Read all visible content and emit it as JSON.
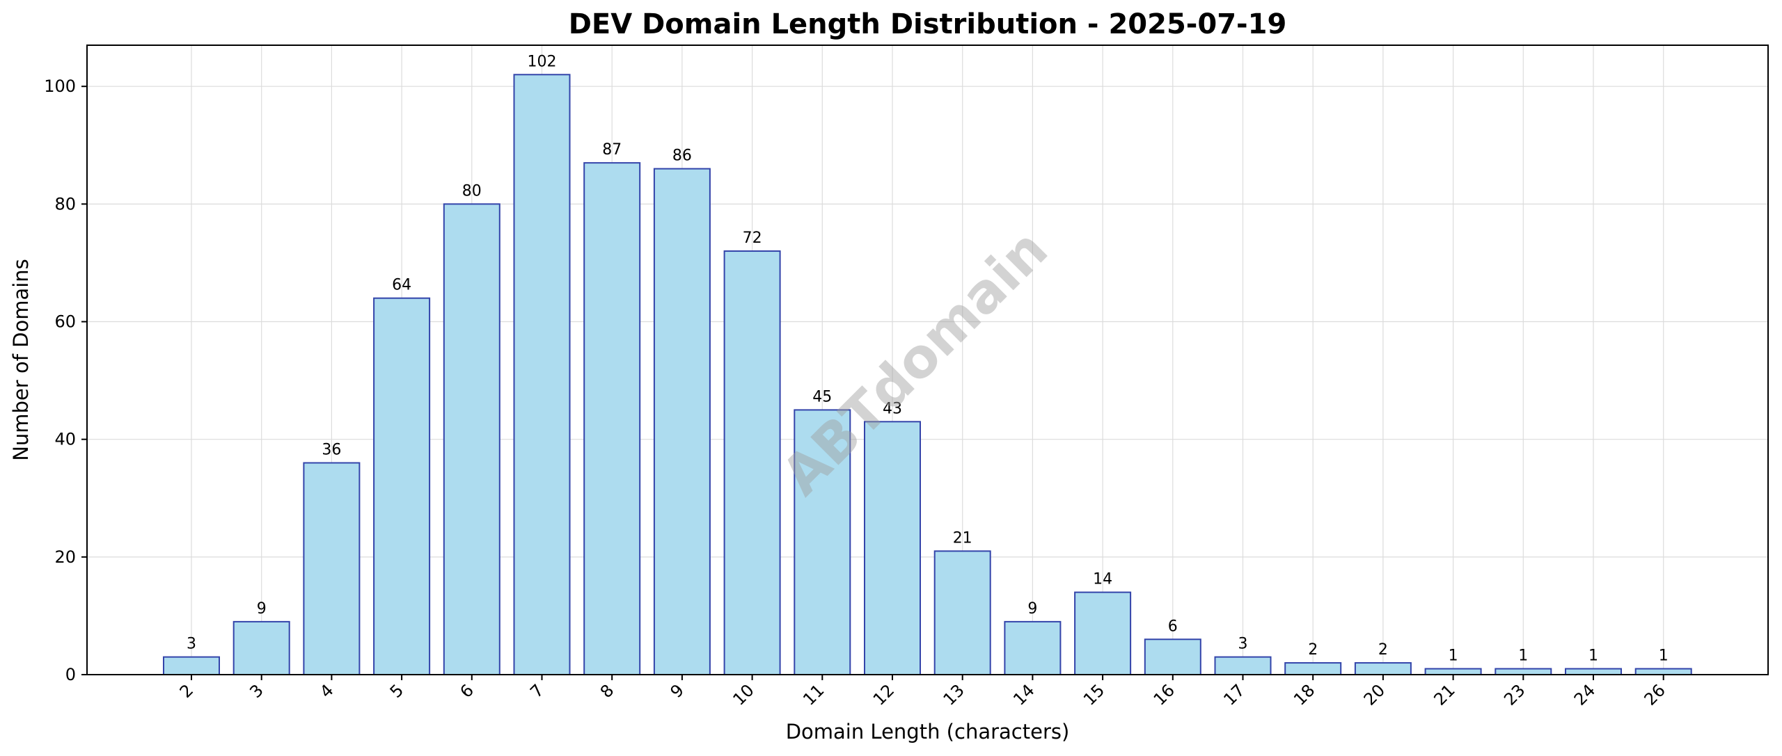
{
  "chart_data": {
    "type": "bar",
    "title": "DEV Domain Length Distribution - 2025-07-19",
    "xlabel": "Domain Length (characters)",
    "ylabel": "Number of Domains",
    "categories": [
      "2",
      "3",
      "4",
      "5",
      "6",
      "7",
      "8",
      "9",
      "10",
      "11",
      "12",
      "13",
      "14",
      "15",
      "16",
      "17",
      "18",
      "20",
      "21",
      "23",
      "24",
      "26"
    ],
    "values": [
      3,
      9,
      36,
      64,
      80,
      102,
      87,
      86,
      72,
      45,
      43,
      21,
      9,
      14,
      6,
      3,
      2,
      2,
      1,
      1,
      1,
      1
    ],
    "ylim": [
      0,
      107
    ],
    "yticks": [
      0,
      20,
      40,
      60,
      80,
      100
    ],
    "grid": true,
    "xtick_rotation": 45,
    "bar_fill": "#ADDCEF",
    "bar_edge": "#3344AA",
    "watermark": "ABTdomain"
  }
}
